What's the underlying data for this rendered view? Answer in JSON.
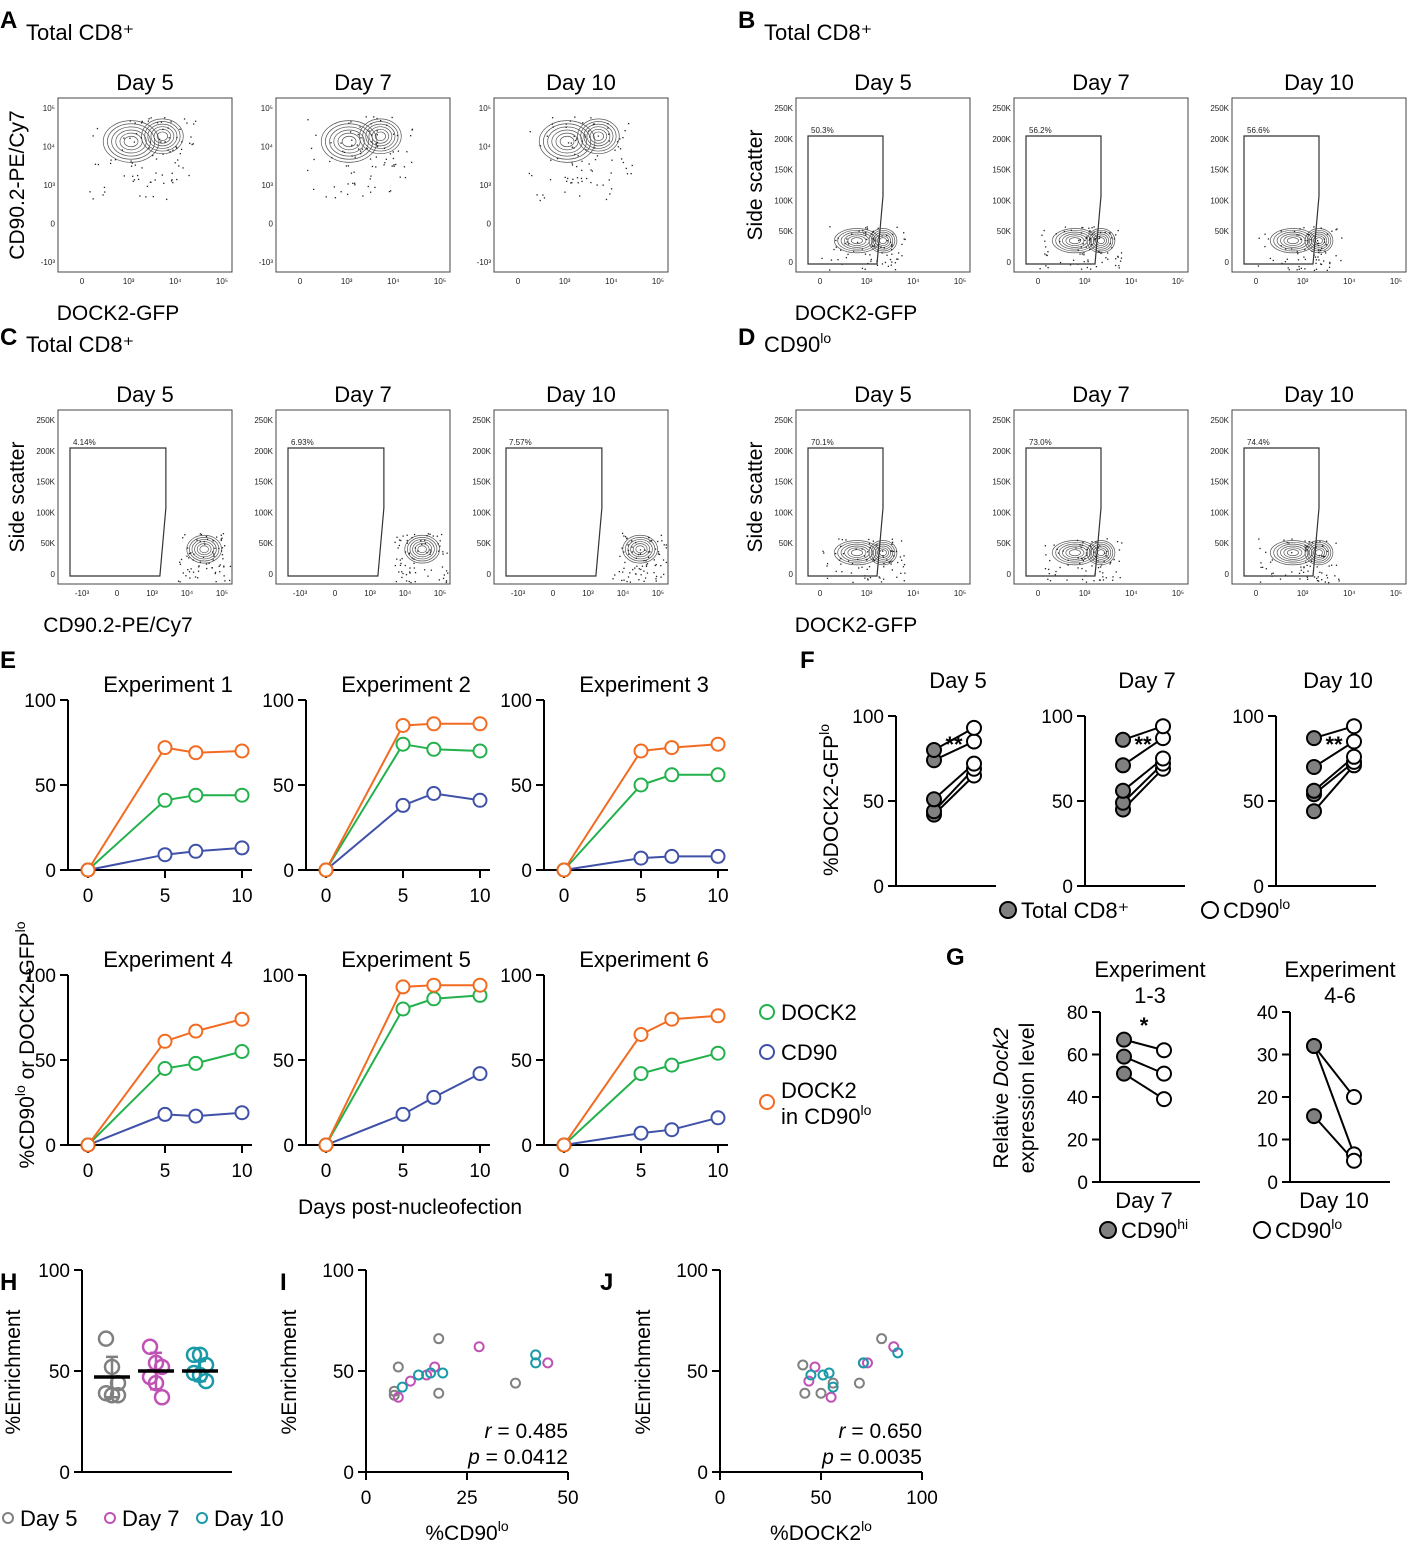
{
  "figure": {
    "panel_letters": [
      "A",
      "B",
      "C",
      "D",
      "E",
      "F",
      "G",
      "H",
      "I",
      "J"
    ]
  },
  "colors": {
    "dock2": "#22b14c",
    "cd90": "#3f51a8",
    "dock2_cd90lo": "#f26b21",
    "day5": "#808080",
    "day7": "#c052b6",
    "day10": "#1a9aa8",
    "filled": "#808080"
  },
  "flow_panels": {
    "A": {
      "population": "Total CD8⁺",
      "ylabel": "CD90.2-PE/Cy7",
      "xlabel": "DOCK2-GFP",
      "days": [
        "Day 5",
        "Day 7",
        "Day 10"
      ],
      "x_ticks": [
        "0",
        "10³",
        "10⁴",
        "10⁵"
      ],
      "y_ticks": [
        "10⁵",
        "10⁴",
        "10³",
        "0",
        "-10³"
      ],
      "gates": []
    },
    "B": {
      "population": "Total CD8⁺",
      "ylabel": "Side scatter",
      "xlabel": "DOCK2-GFP",
      "days": [
        "Day 5",
        "Day 7",
        "Day 10"
      ],
      "x_ticks": [
        "0",
        "10³",
        "10⁴",
        "10⁵"
      ],
      "y_ticks": [
        "250K",
        "200K",
        "150K",
        "100K",
        "50K",
        "0"
      ],
      "gates": [
        "50.3%",
        "56.2%",
        "56.6%"
      ]
    },
    "C": {
      "population": "Total CD8⁺",
      "ylabel": "Side scatter",
      "xlabel": "CD90.2-PE/Cy7",
      "days": [
        "Day 5",
        "Day 7",
        "Day 10"
      ],
      "x_ticks": [
        "-10³",
        "0",
        "10³",
        "10⁴",
        "10⁵"
      ],
      "y_ticks": [
        "250K",
        "200K",
        "150K",
        "100K",
        "50K",
        "0"
      ],
      "gates": [
        "4.14%",
        "6.93%",
        "7.57%"
      ]
    },
    "D": {
      "population": "CD90",
      "population_sup": "lo",
      "ylabel": "Side scatter",
      "xlabel": "DOCK2-GFP",
      "days": [
        "Day 5",
        "Day 7",
        "Day 10"
      ],
      "x_ticks": [
        "0",
        "10³",
        "10⁴",
        "10⁵"
      ],
      "y_ticks": [
        "250K",
        "200K",
        "150K",
        "100K",
        "50K",
        "0"
      ],
      "gates": [
        "70.1%",
        "73.0%",
        "74.4%"
      ]
    }
  },
  "chart_data": [
    {
      "panel": "E",
      "type": "line",
      "ylabel_main": "%CD90",
      "ylabel_sup1": "lo",
      "ylabel_mid": " or DOCK2-GFP",
      "ylabel_sup2": "lo",
      "xlabel": "Days post-nucleofection",
      "x": [
        0,
        5,
        7,
        10
      ],
      "x_ticks": [
        "0",
        "5",
        "10"
      ],
      "y_ticks": [
        "0",
        "50",
        "100"
      ],
      "ylim": [
        0,
        100
      ],
      "legend": {
        "dock2": "DOCK2",
        "cd90": "CD90",
        "dock2_cd90lo_line1": "DOCK2",
        "dock2_cd90lo_line2": "in CD90",
        "dock2_cd90lo_sup": "lo"
      },
      "experiments": [
        {
          "title": "Experiment 1",
          "dock2": [
            0,
            41,
            44,
            44
          ],
          "cd90": [
            0,
            9,
            11,
            13
          ],
          "dock2_cd90lo": [
            0,
            72,
            69,
            70
          ]
        },
        {
          "title": "Experiment 2",
          "dock2": [
            0,
            74,
            71,
            70
          ],
          "cd90": [
            0,
            38,
            45,
            41
          ],
          "dock2_cd90lo": [
            0,
            85,
            86,
            86
          ]
        },
        {
          "title": "Experiment 3",
          "dock2": [
            0,
            50,
            56,
            56
          ],
          "cd90": [
            0,
            7,
            8,
            8
          ],
          "dock2_cd90lo": [
            0,
            70,
            72,
            74
          ]
        },
        {
          "title": "Experiment 4",
          "dock2": [
            0,
            45,
            48,
            55
          ],
          "cd90": [
            0,
            18,
            17,
            19
          ],
          "dock2_cd90lo": [
            0,
            61,
            67,
            74
          ]
        },
        {
          "title": "Experiment 5",
          "dock2": [
            0,
            80,
            86,
            88
          ],
          "cd90": [
            0,
            18,
            28,
            42
          ],
          "dock2_cd90lo": [
            0,
            93,
            94,
            94
          ]
        },
        {
          "title": "Experiment 6",
          "dock2": [
            0,
            42,
            47,
            54
          ],
          "cd90": [
            0,
            7,
            9,
            16
          ],
          "dock2_cd90lo": [
            0,
            65,
            74,
            76
          ]
        }
      ]
    },
    {
      "panel": "F",
      "type": "paired-scatter",
      "ylabel_main": "%DOCK2-GFP",
      "ylabel_sup": "lo",
      "y_ticks": [
        "0",
        "50",
        "100"
      ],
      "ylim": [
        0,
        100
      ],
      "legend": {
        "total": "Total CD8⁺",
        "cd90lo": "CD90",
        "cd90lo_sup": "lo"
      },
      "days": [
        {
          "title": "Day 5",
          "sig": "**",
          "total": [
            42,
            44,
            51,
            74,
            80
          ],
          "cd90lo": [
            65,
            69,
            72,
            85,
            93
          ]
        },
        {
          "title": "Day 7",
          "sig": "**",
          "total": [
            45,
            49,
            56,
            71,
            86
          ],
          "cd90lo": [
            69,
            72,
            75,
            87,
            94
          ]
        },
        {
          "title": "Day 10",
          "sig": "**",
          "total": [
            44,
            54,
            56,
            70,
            87
          ],
          "cd90lo": [
            71,
            73,
            76,
            85,
            94
          ]
        }
      ]
    },
    {
      "panel": "G",
      "type": "paired-scatter",
      "ylabel_line1": "Relative",
      "ylabel_italic": "Dock2",
      "ylabel_line1_end": " expression level",
      "legend": {
        "hi": "CD90",
        "hi_sup": "hi",
        "lo": "CD90",
        "lo_sup": "lo"
      },
      "groups": [
        {
          "title_line1": "Experiment",
          "title_line2": "1-3",
          "xlabel": "Day 7",
          "sig": "*",
          "y_ticks": [
            "0",
            "20",
            "40",
            "60",
            "80"
          ],
          "ylim": [
            0,
            80
          ],
          "hi": [
            67,
            59,
            51
          ],
          "lo": [
            62,
            51,
            39
          ]
        },
        {
          "title_line1": "Experiment",
          "title_line2": "4-6",
          "xlabel": "Day 10",
          "sig": "",
          "y_ticks": [
            "0",
            "10",
            "20",
            "30",
            "40"
          ],
          "ylim": [
            0,
            40
          ],
          "hi": [
            32,
            32,
            15.5
          ],
          "lo": [
            20,
            6.5,
            5
          ]
        }
      ]
    },
    {
      "panel": "H",
      "type": "scatter",
      "ylabel": "%Enrichment",
      "y_ticks": [
        "0",
        "50",
        "100"
      ],
      "ylim": [
        0,
        100
      ],
      "legend": [
        "Day 5",
        "Day 7",
        "Day 10"
      ],
      "groups": [
        {
          "name": "Day 5",
          "values": [
            66,
            52,
            44,
            39,
            38,
            38
          ],
          "mean": 47,
          "sd": 10
        },
        {
          "name": "Day 7",
          "values": [
            62,
            54,
            52,
            47,
            44,
            37
          ],
          "mean": 50,
          "sd": 9
        },
        {
          "name": "Day 10",
          "values": [
            58,
            58,
            53,
            49,
            48,
            45
          ],
          "mean": 50,
          "sd": 5
        }
      ]
    },
    {
      "panel": "I",
      "type": "scatter",
      "ylabel": "%Enrichment",
      "xlabel_main": "%CD90",
      "xlabel_sup": "lo",
      "x_ticks": [
        "0",
        "25",
        "50"
      ],
      "y_ticks": [
        "0",
        "50",
        "100"
      ],
      "xlim": [
        0,
        50
      ],
      "ylim": [
        0,
        100
      ],
      "r_label": "r",
      "r_value": " = 0.485",
      "p_label": "p",
      "p_value": " = 0.0412",
      "points": [
        {
          "day": "Day 5",
          "x": 8,
          "y": 52
        },
        {
          "day": "Day 5",
          "x": 7,
          "y": 40
        },
        {
          "day": "Day 5",
          "x": 7,
          "y": 38
        },
        {
          "day": "Day 5",
          "x": 18,
          "y": 66
        },
        {
          "day": "Day 5",
          "x": 18,
          "y": 39
        },
        {
          "day": "Day 5",
          "x": 37,
          "y": 44
        },
        {
          "day": "Day 7",
          "x": 8,
          "y": 37
        },
        {
          "day": "Day 7",
          "x": 11,
          "y": 45
        },
        {
          "day": "Day 7",
          "x": 15,
          "y": 48
        },
        {
          "day": "Day 7",
          "x": 17,
          "y": 52
        },
        {
          "day": "Day 7",
          "x": 28,
          "y": 62
        },
        {
          "day": "Day 7",
          "x": 45,
          "y": 54
        },
        {
          "day": "Day 10",
          "x": 9,
          "y": 42
        },
        {
          "day": "Day 10",
          "x": 13,
          "y": 48
        },
        {
          "day": "Day 10",
          "x": 16,
          "y": 49
        },
        {
          "day": "Day 10",
          "x": 19,
          "y": 49
        },
        {
          "day": "Day 10",
          "x": 42,
          "y": 58
        },
        {
          "day": "Day 10",
          "x": 42,
          "y": 54
        }
      ]
    },
    {
      "panel": "J",
      "type": "scatter",
      "ylabel": "%Enrichment",
      "xlabel_main": "%DOCK2",
      "xlabel_sup": "lo",
      "x_ticks": [
        "0",
        "50",
        "100"
      ],
      "y_ticks": [
        "0",
        "50",
        "100"
      ],
      "xlim": [
        0,
        100
      ],
      "ylim": [
        0,
        100
      ],
      "r_label": "r",
      "r_value": " = 0.650",
      "p_label": "p",
      "p_value": " = 0.0035",
      "points": [
        {
          "day": "Day 5",
          "x": 41,
          "y": 53
        },
        {
          "day": "Day 5",
          "x": 42,
          "y": 39
        },
        {
          "day": "Day 5",
          "x": 50,
          "y": 39
        },
        {
          "day": "Day 5",
          "x": 56,
          "y": 44
        },
        {
          "day": "Day 5",
          "x": 69,
          "y": 44
        },
        {
          "day": "Day 5",
          "x": 80,
          "y": 66
        },
        {
          "day": "Day 7",
          "x": 44,
          "y": 45
        },
        {
          "day": "Day 7",
          "x": 47,
          "y": 52
        },
        {
          "day": "Day 7",
          "x": 55,
          "y": 37
        },
        {
          "day": "Day 7",
          "x": 71,
          "y": 54
        },
        {
          "day": "Day 7",
          "x": 73,
          "y": 54
        },
        {
          "day": "Day 7",
          "x": 86,
          "y": 62
        },
        {
          "day": "Day 10",
          "x": 45,
          "y": 48
        },
        {
          "day": "Day 10",
          "x": 51,
          "y": 48
        },
        {
          "day": "Day 10",
          "x": 54,
          "y": 49
        },
        {
          "day": "Day 10",
          "x": 56,
          "y": 42
        },
        {
          "day": "Day 10",
          "x": 71,
          "y": 54
        },
        {
          "day": "Day 10",
          "x": 88,
          "y": 59
        }
      ]
    }
  ]
}
